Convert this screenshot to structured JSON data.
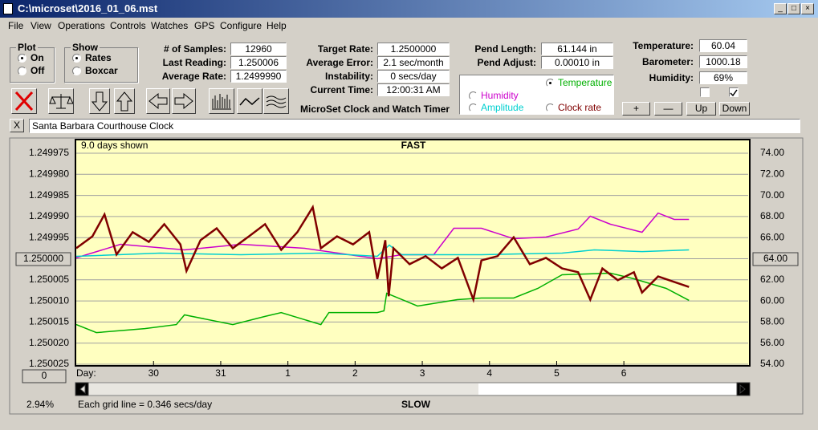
{
  "window": {
    "title": "C:\\microset\\2016_01_06.mst"
  },
  "menu": [
    "File",
    "View",
    "Operations",
    "Controls",
    "Watches",
    "GPS",
    "Configure",
    "Help"
  ],
  "plot_group": {
    "label": "Plot",
    "options": [
      "On",
      "Off"
    ],
    "selected": 0
  },
  "show_group": {
    "label": "Show",
    "options": [
      "Rates",
      "Boxcar"
    ],
    "selected": 0
  },
  "readings": [
    {
      "label": "# of Samples:",
      "value": "12960"
    },
    {
      "label": "Last Reading:",
      "value": "1.250006"
    },
    {
      "label": "Average Rate:",
      "value": "1.2499990"
    }
  ],
  "timing": [
    {
      "label": "Target Rate:",
      "value": "1.2500000"
    },
    {
      "label": "Average Error:",
      "value": "2.1 sec/month"
    },
    {
      "label": "Instability:",
      "value": "0 secs/day"
    },
    {
      "label": "Current Time:",
      "value": "12:00:31 AM"
    }
  ],
  "app_name": "MicroSet Clock and Watch Timer",
  "pendulum": [
    {
      "label": "Pend Length:",
      "value": "61.144 in"
    },
    {
      "label": "Pend Adjust:",
      "value": "0.00010 in"
    }
  ],
  "environment": [
    {
      "label": "Temperature:",
      "value": "60.04"
    },
    {
      "label": "Barometer:",
      "value": "1000.18"
    },
    {
      "label": "Humidity:",
      "value": "69%"
    }
  ],
  "checkboxes": [
    false,
    true
  ],
  "buttons": [
    "+",
    "—",
    "Up",
    "Down"
  ],
  "clock": {
    "close": "X",
    "name": "Santa Barbara Courthouse Clock"
  },
  "chart_data": {
    "type": "line",
    "span_label": "9.0 days shown",
    "title": "FAST",
    "bottom_title": "SLOW",
    "grid_note": "Each grid line = 0.346 secs/day",
    "x_label": "Day:",
    "center_left": "1.250000",
    "center_right": "64.00",
    "offset_button": "0",
    "scroll_percent": "2.94%",
    "grid": true,
    "xlim": [
      0,
      10
    ],
    "xticks": [
      {
        "value": 1.15,
        "label": "30"
      },
      {
        "value": 2.15,
        "label": "31"
      },
      {
        "value": 3.15,
        "label": "1"
      },
      {
        "value": 4.15,
        "label": "2"
      },
      {
        "value": 5.15,
        "label": "3"
      },
      {
        "value": 6.15,
        "label": "4"
      },
      {
        "value": 7.15,
        "label": "5"
      },
      {
        "value": 8.15,
        "label": "6"
      }
    ],
    "ylim": [
      1.250025,
      1.249975
    ],
    "yticks": [
      {
        "value": 1.249975,
        "label": "1.249975"
      },
      {
        "value": 1.24998,
        "label": "1.249980"
      },
      {
        "value": 1.249985,
        "label": "1.249985"
      },
      {
        "value": 1.24999,
        "label": "1.249990"
      },
      {
        "value": 1.249995,
        "label": "1.249995"
      },
      {
        "value": 1.25,
        "label": "1.250000"
      },
      {
        "value": 1.250005,
        "label": "1.250005"
      },
      {
        "value": 1.25001,
        "label": "1.250010"
      },
      {
        "value": 1.250015,
        "label": "1.250015"
      },
      {
        "value": 1.25002,
        "label": "1.250020"
      },
      {
        "value": 1.250025,
        "label": "1.250025"
      }
    ],
    "y2lim": [
      54,
      74
    ],
    "y2ticks": [
      {
        "value": 74,
        "label": "74.00"
      },
      {
        "value": 72,
        "label": "72.00"
      },
      {
        "value": 70,
        "label": "70.00"
      },
      {
        "value": 68,
        "label": "68.00"
      },
      {
        "value": 66,
        "label": "66.00"
      },
      {
        "value": 64,
        "label": "64.00"
      },
      {
        "value": 62,
        "label": "62.00"
      },
      {
        "value": 60,
        "label": "60.00"
      },
      {
        "value": 58,
        "label": "58.00"
      },
      {
        "value": 56,
        "label": "56.00"
      },
      {
        "value": 54,
        "label": "54.00"
      }
    ],
    "series": [
      {
        "name": "Clock rate",
        "color": "#800000",
        "selected": false,
        "x": [
          0,
          0.24,
          0.42,
          0.6,
          0.84,
          1.08,
          1.31,
          1.55,
          1.64,
          1.85,
          2.09,
          2.33,
          2.57,
          2.81,
          3.05,
          3.29,
          3.52,
          3.64,
          3.88,
          4.12,
          4.36,
          4.48,
          4.6,
          4.65,
          4.72,
          4.96,
          5.2,
          5.44,
          5.68,
          5.91,
          6.03,
          6.27,
          6.51,
          6.75,
          6.99,
          7.23,
          7.47,
          7.65,
          7.83,
          8.06,
          8.3,
          8.42,
          8.66,
          8.9,
          9.12
        ],
        "values": [
          1.2499975,
          1.2499947,
          1.2499895,
          1.249999,
          1.2499937,
          1.249996,
          1.2499918,
          1.2499966,
          1.2500029,
          1.2499956,
          1.2499928,
          1.2499975,
          1.2499947,
          1.2499918,
          1.2499979,
          1.2499937,
          1.2499878,
          1.2499975,
          1.2499947,
          1.2499966,
          1.2499937,
          1.2500048,
          1.2499956,
          1.2500089,
          1.2499975,
          1.2500013,
          1.2499994,
          1.2500023,
          1.2499998,
          1.2500097,
          1.2500004,
          1.2499994,
          1.2499949,
          1.2500013,
          1.2499998,
          1.2500023,
          1.2500032,
          1.2500097,
          1.2500023,
          1.2500051,
          1.2500032,
          1.250008,
          1.2500042,
          1.2500055,
          1.2500067
        ]
      },
      {
        "name": "Temperature",
        "color": "#00b000",
        "axis": "y2",
        "selected": true,
        "x": [
          0,
          0.3,
          1.02,
          1.49,
          1.61,
          2.33,
          2.81,
          3.05,
          3.64,
          3.76,
          4.48,
          4.58,
          4.62,
          5.08,
          5.67,
          6.03,
          6.51,
          6.87,
          7.23,
          7.95,
          8.3,
          8.78,
          9.12
        ],
        "values": [
          57.76,
          57.0,
          57.38,
          57.76,
          58.68,
          57.76,
          58.53,
          58.9,
          57.76,
          58.9,
          58.9,
          59.06,
          60.73,
          59.51,
          60.12,
          60.27,
          60.27,
          61.19,
          62.48,
          62.63,
          62.1,
          61.19,
          60.05
        ]
      },
      {
        "name": "Humidity",
        "color": "#cc00cc",
        "axis": "y2",
        "selected": false,
        "x": [
          0,
          0.66,
          1.61,
          2.45,
          3.4,
          4.48,
          4.84,
          5.32,
          5.62,
          6.03,
          6.51,
          6.99,
          7.47,
          7.65,
          7.95,
          8.42,
          8.66,
          8.9,
          9.12
        ],
        "values": [
          64.08,
          65.37,
          64.84,
          65.37,
          64.99,
          64.0,
          64.38,
          64.38,
          66.89,
          66.89,
          65.9,
          66.05,
          66.81,
          68.03,
          67.27,
          66.51,
          68.33,
          67.73,
          67.73
        ]
      },
      {
        "name": "Amplitude",
        "color": "#00d0d0",
        "axis": "y2",
        "selected": false,
        "x": [
          0,
          1.25,
          2.45,
          3.64,
          4.48,
          4.66,
          4.84,
          6.03,
          7.23,
          7.71,
          8.42,
          9.12
        ],
        "values": [
          64.23,
          64.53,
          64.38,
          64.53,
          64.23,
          65.29,
          64.38,
          64.38,
          64.53,
          64.84,
          64.68,
          64.84
        ]
      }
    ]
  }
}
